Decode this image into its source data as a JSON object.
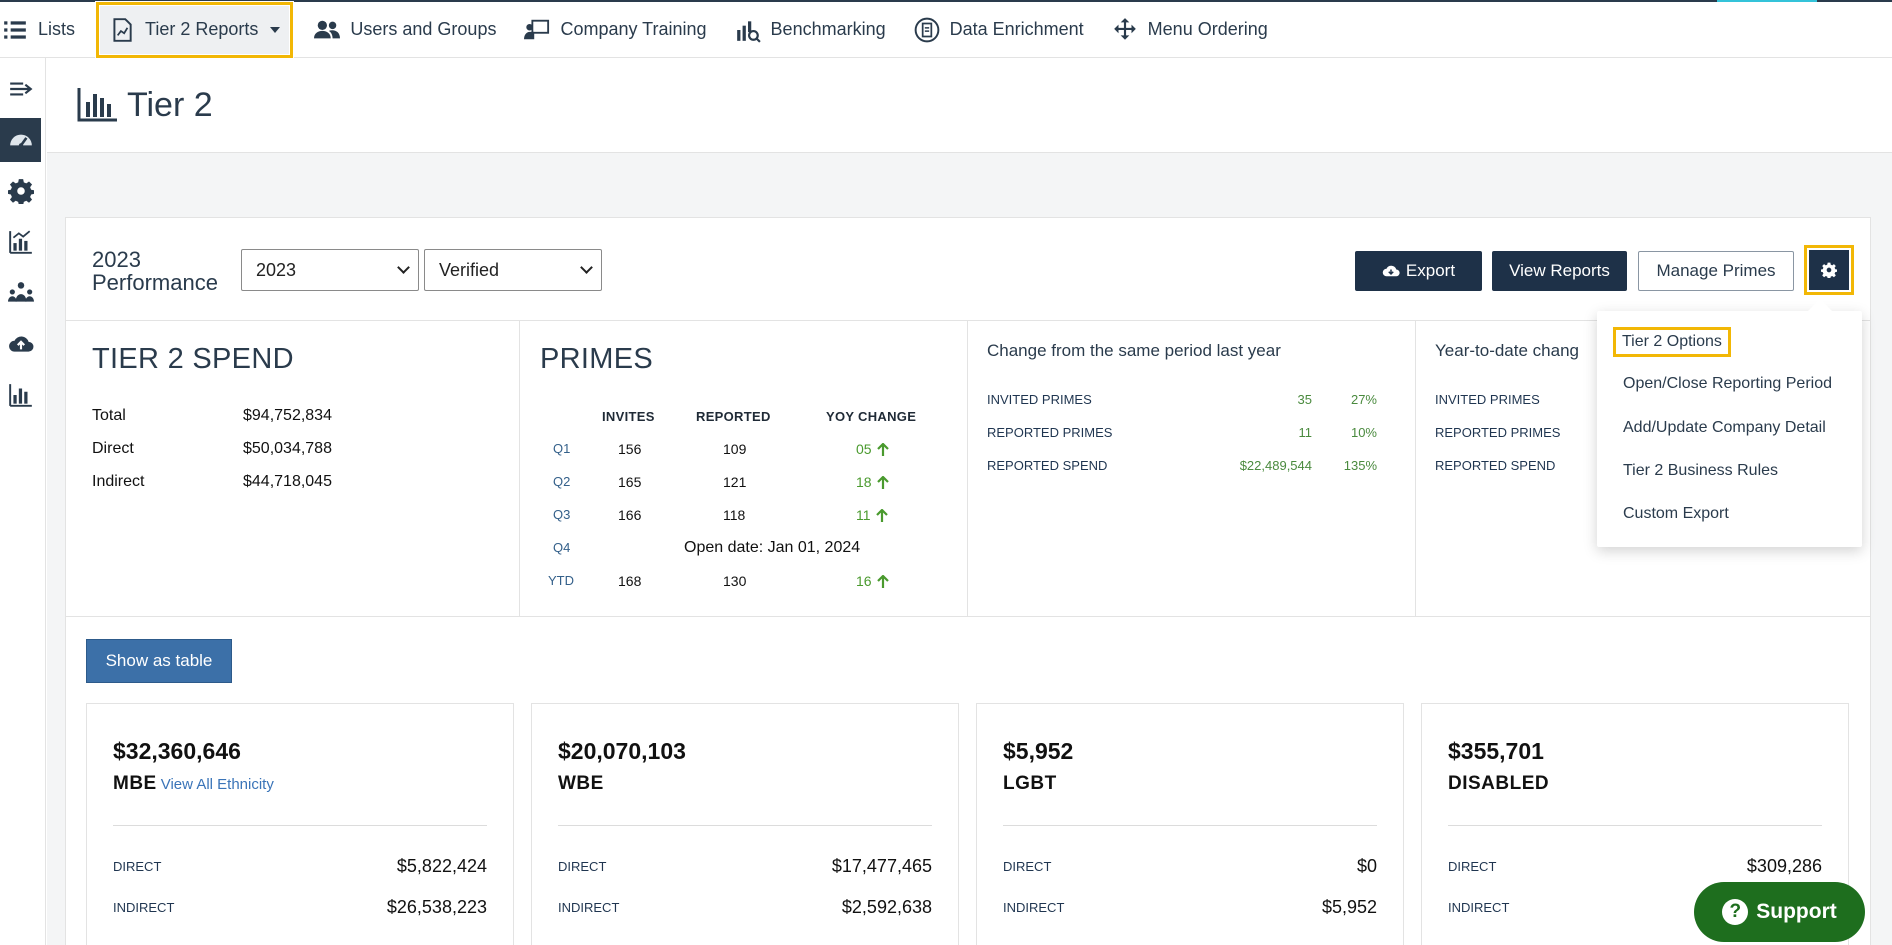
{
  "nav": {
    "items": [
      {
        "label": "Lists",
        "icon": "list-icon"
      },
      {
        "label": "Tier 2 Reports",
        "icon": "report-icon"
      },
      {
        "label": "Users and Groups",
        "icon": "users-icon"
      },
      {
        "label": "Company Training",
        "icon": "training-icon"
      },
      {
        "label": "Benchmarking",
        "icon": "benchmark-icon"
      },
      {
        "label": "Data Enrichment",
        "icon": "enrichment-icon"
      },
      {
        "label": "Menu Ordering",
        "icon": "move-icon"
      }
    ]
  },
  "page": {
    "title": "Tier 2"
  },
  "toolbar": {
    "perf_year": "2023",
    "perf_label": "Performance",
    "year_select": "2023",
    "status_select": "Verified",
    "export_label": "Export",
    "view_reports_label": "View Reports",
    "manage_primes_label": "Manage Primes"
  },
  "spend": {
    "title": "TIER 2 SPEND",
    "rows": [
      {
        "label": "Total",
        "value": "$94,752,834"
      },
      {
        "label": "Direct",
        "value": "$50,034,788"
      },
      {
        "label": "Indirect",
        "value": "$44,718,045"
      }
    ]
  },
  "primes": {
    "title": "PRIMES",
    "headers": [
      "INVITES",
      "REPORTED",
      "YOY CHANGE"
    ],
    "rows": [
      {
        "q": "Q1",
        "invites": "156",
        "reported": "109",
        "yoy": "05"
      },
      {
        "q": "Q2",
        "invites": "165",
        "reported": "121",
        "yoy": "18"
      },
      {
        "q": "Q3",
        "invites": "166",
        "reported": "118",
        "yoy": "11"
      },
      {
        "q": "Q4",
        "note": "Open date: Jan 01, 2024"
      },
      {
        "q": "YTD",
        "invites": "168",
        "reported": "130",
        "yoy": "16"
      }
    ]
  },
  "change": {
    "title": "Change from the same period last year",
    "rows": [
      {
        "label": "INVITED PRIMES",
        "value": "35",
        "pct": "27%"
      },
      {
        "label": "REPORTED PRIMES",
        "value": "11",
        "pct": "10%"
      },
      {
        "label": "REPORTED SPEND",
        "value": "$22,489,544",
        "pct": "135%"
      }
    ]
  },
  "ytd": {
    "title": "Year-to-date chang",
    "rows": [
      {
        "label": "INVITED PRIMES"
      },
      {
        "label": "REPORTED PRIMES"
      },
      {
        "label": "REPORTED SPEND"
      }
    ]
  },
  "show_table_label": "Show as table",
  "cards": [
    {
      "amount": "$32,360,646",
      "category": "MBE",
      "link": "View All Ethnicity",
      "direct_label": "DIRECT",
      "direct": "$5,822,424",
      "indirect_label": "INDIRECT",
      "indirect": "$26,538,223"
    },
    {
      "amount": "$20,070,103",
      "category": "WBE",
      "direct_label": "DIRECT",
      "direct": "$17,477,465",
      "indirect_label": "INDIRECT",
      "indirect": "$2,592,638"
    },
    {
      "amount": "$5,952",
      "category": "LGBT",
      "direct_label": "DIRECT",
      "direct": "$0",
      "indirect_label": "INDIRECT",
      "indirect": "$5,952"
    },
    {
      "amount": "$355,701",
      "category": "DISABLED",
      "direct_label": "DIRECT",
      "direct": "$309,286",
      "indirect_label": "INDIRECT"
    }
  ],
  "dropdown": {
    "items": [
      "Tier 2 Options",
      "Open/Close Reporting Period",
      "Add/Update Company Detail",
      "Tier 2 Business Rules",
      "Custom Export"
    ]
  },
  "support_label": "Support",
  "colors": {
    "primary": "#1e3148",
    "accent": "#34c3d9",
    "highlight": "#f2b705",
    "positive": "#4a9a2e",
    "button_blue": "#3c70a8",
    "support_green": "#1e6e1e"
  }
}
